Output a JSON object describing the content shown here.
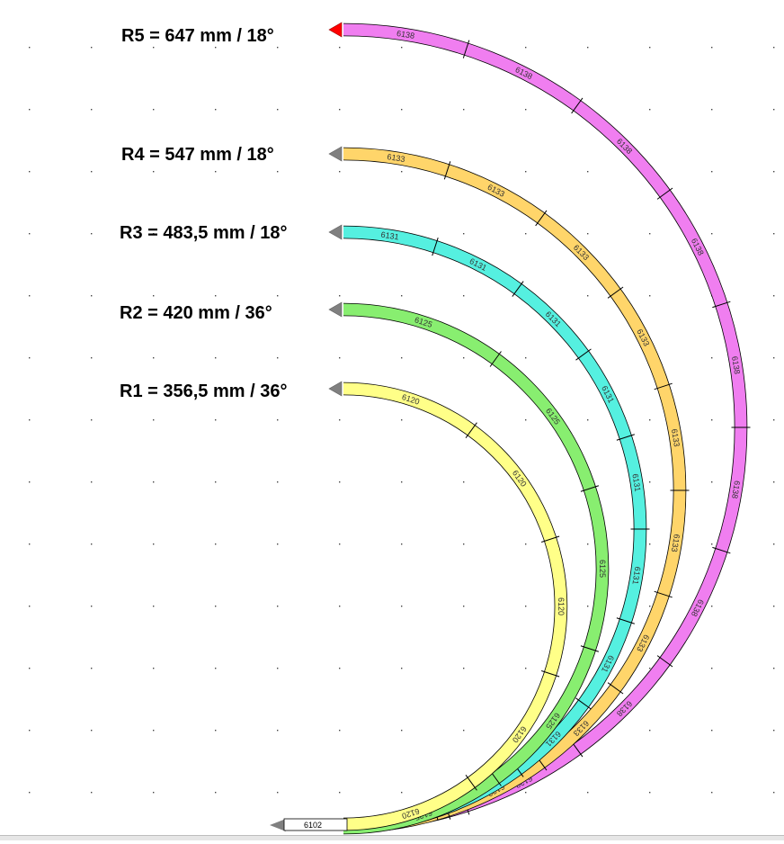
{
  "radius_labels": [
    {
      "id": "r5",
      "text": "R5 = 647 mm / 18°"
    },
    {
      "id": "r4",
      "text": "R4 = 547 mm / 18°"
    },
    {
      "id": "r3",
      "text": "R3 = 483,5 mm / 18°"
    },
    {
      "id": "r2",
      "text": "R2 = 420 mm / 36°"
    },
    {
      "id": "r1",
      "text": "R1 = 356,5 mm / 36°"
    }
  ],
  "tracks": [
    {
      "id": "r1",
      "code": "6120",
      "color": "#ffff88",
      "end_arrow": "#808080",
      "segments": 5
    },
    {
      "id": "r2",
      "code": "6125",
      "color": "#88ee70",
      "end_arrow": "#808080",
      "segments": 5
    },
    {
      "id": "r3",
      "code": "6131",
      "color": "#55f0e0",
      "end_arrow": "#808080",
      "segments": 10
    },
    {
      "id": "r4",
      "code": "6133",
      "color": "#ffd56a",
      "end_arrow": "#808080",
      "segments": 10
    },
    {
      "id": "r5",
      "code": "6138",
      "color": "#f07ef0",
      "end_arrow": "#ff0000",
      "segments": 10
    }
  ],
  "straight": {
    "code": "6102"
  }
}
